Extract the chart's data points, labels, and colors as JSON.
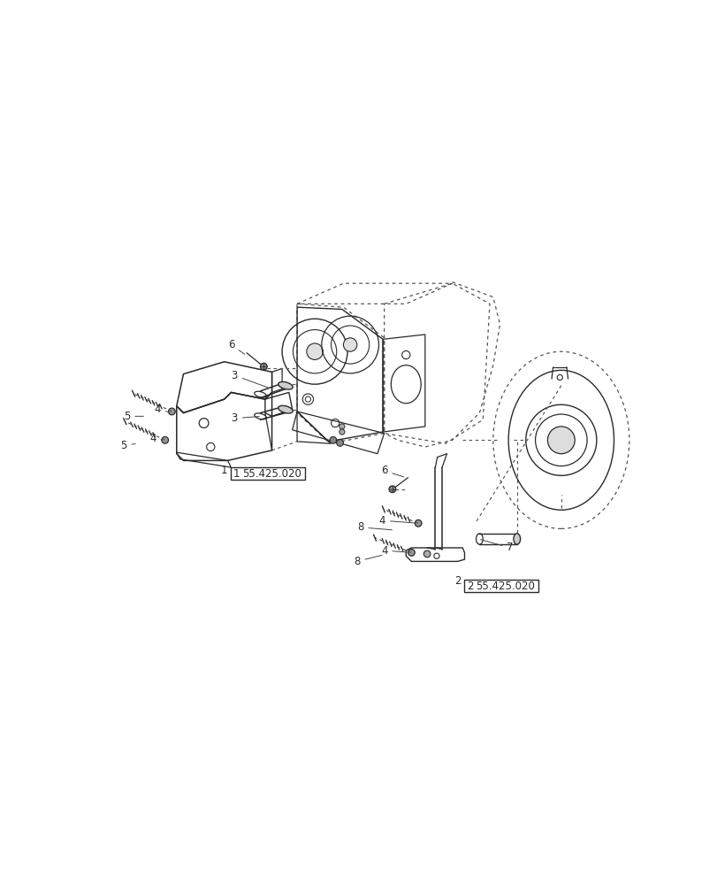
{
  "bg_color": "#ffffff",
  "lc": "#2a2a2a",
  "dc": "#555555",
  "fig_width": 8.12,
  "fig_height": 10.0,
  "dpi": 100,
  "part_ref_1": "55.425.020",
  "part_ref_2": "55.425.020"
}
